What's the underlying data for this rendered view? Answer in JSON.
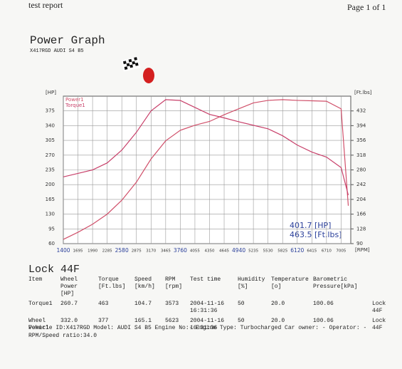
{
  "header": {
    "left": "test report",
    "right": "Page 1 of 1",
    "title": "Power Graph",
    "subtitle": "X417RGD AUDI S4 B5"
  },
  "chart_data": {
    "type": "line",
    "x": [
      1400,
      1695,
      1990,
      2285,
      2580,
      2875,
      3170,
      3465,
      3760,
      4055,
      4350,
      4645,
      4940,
      5235,
      5530,
      5825,
      6120,
      6415,
      6710,
      7005,
      7150
    ],
    "xlim": [
      1400,
      7200
    ],
    "xticks": [
      1400,
      1695,
      1990,
      2285,
      2580,
      2875,
      3170,
      3465,
      3760,
      4055,
      4350,
      4645,
      4940,
      5235,
      5530,
      5825,
      6120,
      6415,
      6710,
      7005
    ],
    "xlabel": "[RPM]",
    "ylabel": "[HP]",
    "y2label": "[Ft.lbs]",
    "ylim": [
      60,
      410
    ],
    "yticks": [
      60,
      95,
      130,
      165,
      200,
      235,
      270,
      305,
      340,
      375
    ],
    "y2lim": [
      90,
      470
    ],
    "y2ticks": [
      90,
      128,
      166,
      204,
      242,
      280,
      318,
      356,
      394,
      432
    ],
    "grid": true,
    "series": [
      {
        "name": "Power1",
        "color": "#d0506a",
        "values": [
          70,
          87,
          106,
          130,
          163,
          206,
          261,
          304,
          329,
          341,
          350,
          366,
          380,
          394,
          400,
          401.7,
          400,
          399,
          398,
          380,
          150
        ]
      },
      {
        "name": "Torque1",
        "color": "#c8406a",
        "axis": "y2",
        "values": [
          262,
          271,
          280,
          298,
          331,
          377,
          432,
          461,
          459,
          441,
          423,
          414,
          404,
          395,
          386,
          368,
          344,
          326,
          313,
          286,
          215
        ]
      }
    ],
    "annotations": [
      "401.7 [HP]",
      "463.5 [Ft.lbs]"
    ]
  },
  "summary": {
    "title": "Lock 44F",
    "columns": [
      [
        "Item"
      ],
      [
        "Wheel Power",
        "[HP]"
      ],
      [
        "Torque",
        "[Ft.lbs]"
      ],
      [
        "Speed",
        "[km/h]"
      ],
      [
        "RPM",
        "[rpm]"
      ],
      [
        "Test time"
      ],
      [
        "Humidity",
        "[%]"
      ],
      [
        "Temperature",
        "[o]"
      ],
      [
        "Barometric",
        "Pressure[kPa]"
      ]
    ],
    "rows": [
      [
        [
          "Torque1"
        ],
        [
          "260.7"
        ],
        [
          "463"
        ],
        [
          "104.7"
        ],
        [
          "3573"
        ],
        [
          "2004-11-16",
          "16:31:36"
        ],
        [
          "50"
        ],
        [
          "20.0"
        ],
        [
          "100.06"
        ],
        [
          "Lock",
          "44F"
        ]
      ],
      [
        [
          "Wheel",
          "Power1"
        ],
        [
          "332.0"
        ],
        [
          "377"
        ],
        [
          "165.1"
        ],
        [
          "5623"
        ],
        [
          "2004-11-16",
          "16:31:36"
        ],
        [
          "50"
        ],
        [
          "20.0"
        ],
        [
          "100.06"
        ],
        [
          "Lock",
          "44F"
        ]
      ]
    ],
    "footer": "Vehicle ID:X417RGD Model: AUDI S4 B5 Engine No:- Engine Type: Turbocharged Car owner: - Operator: - RPM/Speed ratio:34.0"
  }
}
